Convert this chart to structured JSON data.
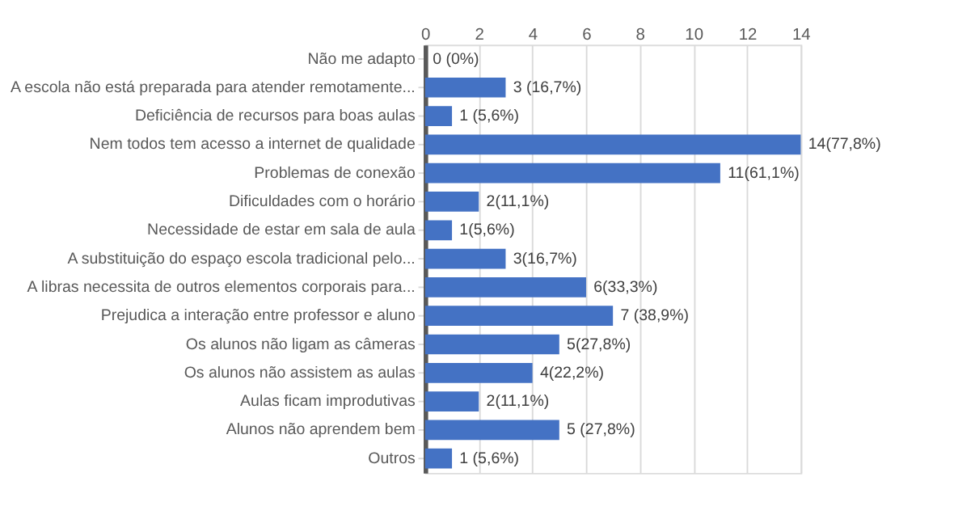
{
  "chart_data": {
    "type": "bar",
    "orientation": "horizontal",
    "categories": [
      "Não me adapto",
      "A escola não está preparada para atender remotamente...",
      "Deficiência de recursos para boas aulas",
      "Nem todos tem acesso a internet de qualidade",
      "Problemas de conexão",
      "Dificuldades com o horário",
      "Necessidade de estar em sala de aula",
      "A substituição do espaço escola tradicional pelo...",
      "A libras necessita de outros elementos corporais para...",
      "Prejudica a interação entre professor e aluno",
      "Os alunos não ligam as câmeras",
      "Os alunos não assistem as aulas",
      "Aulas ficam improdutivas",
      "Alunos não aprendem bem",
      "Outros"
    ],
    "values": [
      0,
      3,
      1,
      14,
      11,
      2,
      1,
      3,
      6,
      7,
      5,
      4,
      2,
      5,
      1
    ],
    "value_labels": [
      "0 (0%)",
      "3 (16,7%)",
      "1 (5,6%)",
      "14(77,8%)",
      "11(61,1%)",
      "2(11,1%)",
      "1(5,6%)",
      "3(16,7%)",
      "6(33,3%)",
      "7 (38,9%)",
      "5(27,8%)",
      "4(22,2%)",
      "2(11,1%)",
      "5 (27,8%)",
      "1 (5,6%)"
    ],
    "color": "#4472c4",
    "xlim": [
      0,
      14
    ],
    "xticks": [
      0,
      2,
      4,
      6,
      8,
      10,
      12,
      14
    ],
    "grid": "x"
  }
}
